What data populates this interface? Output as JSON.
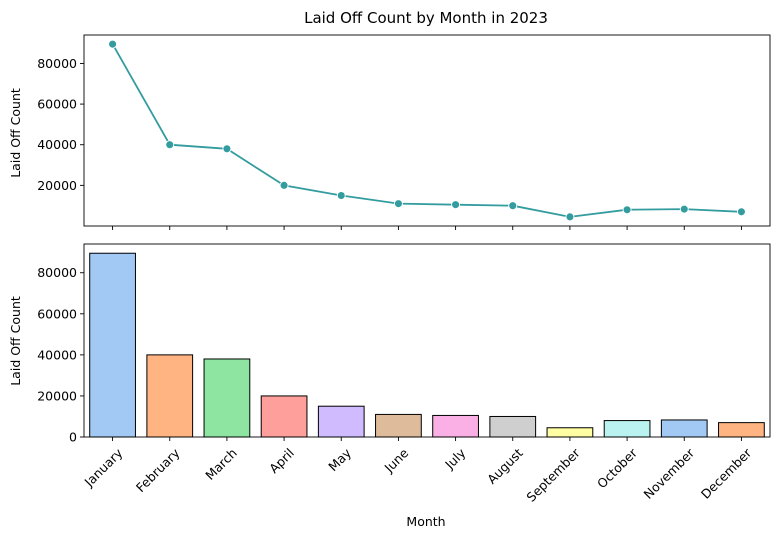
{
  "chart_data": [
    {
      "type": "line",
      "title": "Laid Off Count by Month in 2023",
      "xlabel": "",
      "ylabel": "Laid Off Count",
      "categories": [
        "January",
        "February",
        "March",
        "April",
        "May",
        "June",
        "July",
        "August",
        "September",
        "October",
        "November",
        "December"
      ],
      "values": [
        89500,
        40000,
        38000,
        20000,
        15000,
        11000,
        10500,
        10000,
        4500,
        8000,
        8300,
        7000
      ],
      "ylim": [
        0,
        94000
      ],
      "yticks": [
        "20000",
        "40000",
        "60000",
        "80000"
      ],
      "line_color": "#339c9f",
      "grid": false
    },
    {
      "type": "bar",
      "title": "",
      "xlabel": "Month",
      "ylabel": "Laid Off Count",
      "categories": [
        "January",
        "February",
        "March",
        "April",
        "May",
        "June",
        "July",
        "August",
        "September",
        "October",
        "November",
        "December"
      ],
      "values": [
        89500,
        40000,
        38000,
        20000,
        15000,
        11000,
        10500,
        10000,
        4500,
        8000,
        8300,
        7000
      ],
      "ylim": [
        0,
        94000
      ],
      "yticks": [
        "0",
        "20000",
        "40000",
        "60000",
        "80000"
      ],
      "colors": [
        "#a1c9f4",
        "#ffb482",
        "#8de5a1",
        "#ff9f9b",
        "#d0bbff",
        "#debb9b",
        "#fab0e4",
        "#cfcfcf",
        "#fffea3",
        "#b9f2f0",
        "#a1c9f4",
        "#ffb482"
      ],
      "grid": false
    }
  ]
}
